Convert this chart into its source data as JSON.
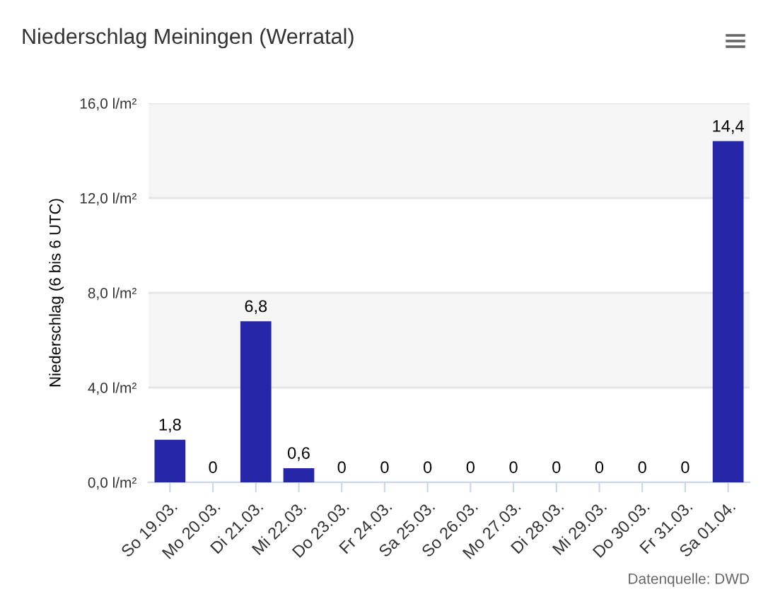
{
  "chart_data": {
    "type": "bar",
    "title": "Niederschlag Meiningen (Werratal)",
    "ylabel": "Niederschlag (6 bis 6 UTC)",
    "categories": [
      "So 19.03.",
      "Mo 20.03.",
      "Di 21.03.",
      "Mi 22.03.",
      "Do 23.03.",
      "Fr 24.03.",
      "Sa 25.03.",
      "So 26.03.",
      "Mo 27.03.",
      "Di 28.03.",
      "Mi 29.03.",
      "Do 30.03.",
      "Fr 31.03.",
      "Sa 01.04."
    ],
    "values": [
      1.8,
      0,
      6.8,
      0.6,
      0,
      0,
      0,
      0,
      0,
      0,
      0,
      0,
      0,
      14.4
    ],
    "value_labels": [
      "1,8",
      "0",
      "6,8",
      "0,6",
      "0",
      "0",
      "0",
      "0",
      "0",
      "0",
      "0",
      "0",
      "0",
      "14,4"
    ],
    "color": "#2626a8",
    "ylim": [
      0,
      16
    ],
    "yticks": [
      {
        "value": 0,
        "label": "0,0 l/m²"
      },
      {
        "value": 4,
        "label": "4,0 l/m²"
      },
      {
        "value": 8,
        "label": "8,0 l/m²"
      },
      {
        "value": 12,
        "label": "12,0 l/m²"
      },
      {
        "value": 16,
        "label": "16,0 l/m²"
      }
    ],
    "bands": [
      {
        "axis": "y",
        "from": 4,
        "to": 8,
        "color": "#f5f5f5"
      },
      {
        "axis": "y",
        "from": 12,
        "to": 16,
        "color": "#f5f5f5"
      }
    ],
    "grid": "y",
    "annotations": [
      "Datenquelle: DWD"
    ]
  }
}
